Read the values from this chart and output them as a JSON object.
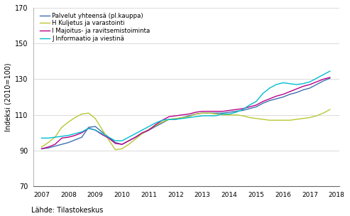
{
  "title": "",
  "ylabel": "Indeksi (2010=100)",
  "source": "Lähde: Tilastokeskus",
  "ylim": [
    70,
    170
  ],
  "yticks": [
    70,
    90,
    110,
    130,
    150,
    170
  ],
  "xlim": [
    2006.7,
    2018.1
  ],
  "legend": [
    "Palvelut yhteensä (pl.kauppa)",
    "H Kuljetus ja varastointi",
    "I Majoitus- ja ravitsemistoiminta",
    "J Informaatio ja viestinä"
  ],
  "colors": [
    "#3d6fad",
    "#b8c832",
    "#b8008a",
    "#00bcd0"
  ],
  "series": {
    "palvelut": [
      [
        2007.0,
        91.0
      ],
      [
        2007.25,
        91.5
      ],
      [
        2007.5,
        92.5
      ],
      [
        2007.75,
        93.5
      ],
      [
        2008.0,
        94.5
      ],
      [
        2008.25,
        96.0
      ],
      [
        2008.5,
        97.5
      ],
      [
        2008.75,
        103.0
      ],
      [
        2009.0,
        103.5
      ],
      [
        2009.25,
        100.5
      ],
      [
        2009.5,
        97.5
      ],
      [
        2009.75,
        94.5
      ],
      [
        2010.0,
        93.5
      ],
      [
        2010.25,
        95.5
      ],
      [
        2010.5,
        97.5
      ],
      [
        2010.75,
        99.5
      ],
      [
        2011.0,
        101.5
      ],
      [
        2011.25,
        103.5
      ],
      [
        2011.5,
        105.5
      ],
      [
        2011.75,
        107.5
      ],
      [
        2012.0,
        107.5
      ],
      [
        2012.25,
        108.5
      ],
      [
        2012.5,
        109.5
      ],
      [
        2012.75,
        110.5
      ],
      [
        2013.0,
        111.0
      ],
      [
        2013.25,
        111.0
      ],
      [
        2013.5,
        111.0
      ],
      [
        2013.75,
        111.0
      ],
      [
        2014.0,
        111.5
      ],
      [
        2014.25,
        112.0
      ],
      [
        2014.5,
        112.5
      ],
      [
        2014.75,
        113.5
      ],
      [
        2015.0,
        114.5
      ],
      [
        2015.25,
        116.5
      ],
      [
        2015.5,
        118.0
      ],
      [
        2015.75,
        119.0
      ],
      [
        2016.0,
        120.0
      ],
      [
        2016.25,
        121.5
      ],
      [
        2016.5,
        122.5
      ],
      [
        2016.75,
        124.0
      ],
      [
        2017.0,
        125.0
      ],
      [
        2017.25,
        127.0
      ],
      [
        2017.5,
        129.0
      ],
      [
        2017.75,
        130.5
      ]
    ],
    "kuljetus": [
      [
        2007.0,
        92.0
      ],
      [
        2007.25,
        94.5
      ],
      [
        2007.5,
        97.5
      ],
      [
        2007.75,
        103.0
      ],
      [
        2008.0,
        106.0
      ],
      [
        2008.25,
        108.5
      ],
      [
        2008.5,
        110.5
      ],
      [
        2008.75,
        111.0
      ],
      [
        2009.0,
        108.0
      ],
      [
        2009.25,
        102.0
      ],
      [
        2009.5,
        96.0
      ],
      [
        2009.75,
        90.5
      ],
      [
        2010.0,
        91.0
      ],
      [
        2010.25,
        93.5
      ],
      [
        2010.5,
        96.5
      ],
      [
        2010.75,
        99.5
      ],
      [
        2011.0,
        102.0
      ],
      [
        2011.25,
        104.0
      ],
      [
        2011.5,
        106.0
      ],
      [
        2011.75,
        107.5
      ],
      [
        2012.0,
        108.0
      ],
      [
        2012.25,
        108.5
      ],
      [
        2012.5,
        109.0
      ],
      [
        2012.75,
        110.5
      ],
      [
        2013.0,
        111.0
      ],
      [
        2013.25,
        111.0
      ],
      [
        2013.5,
        110.5
      ],
      [
        2013.75,
        110.0
      ],
      [
        2014.0,
        110.0
      ],
      [
        2014.25,
        110.0
      ],
      [
        2014.5,
        109.5
      ],
      [
        2014.75,
        108.5
      ],
      [
        2015.0,
        108.0
      ],
      [
        2015.25,
        107.5
      ],
      [
        2015.5,
        107.0
      ],
      [
        2015.75,
        107.0
      ],
      [
        2016.0,
        107.0
      ],
      [
        2016.25,
        107.0
      ],
      [
        2016.5,
        107.5
      ],
      [
        2016.75,
        108.0
      ],
      [
        2017.0,
        108.5
      ],
      [
        2017.25,
        109.5
      ],
      [
        2017.5,
        111.0
      ],
      [
        2017.75,
        113.0
      ]
    ],
    "majoitus": [
      [
        2007.0,
        91.0
      ],
      [
        2007.25,
        92.0
      ],
      [
        2007.5,
        93.5
      ],
      [
        2007.75,
        97.0
      ],
      [
        2008.0,
        97.5
      ],
      [
        2008.25,
        98.5
      ],
      [
        2008.5,
        100.0
      ],
      [
        2008.75,
        102.5
      ],
      [
        2009.0,
        101.5
      ],
      [
        2009.25,
        99.0
      ],
      [
        2009.5,
        97.0
      ],
      [
        2009.75,
        94.0
      ],
      [
        2010.0,
        93.5
      ],
      [
        2010.25,
        95.5
      ],
      [
        2010.5,
        97.5
      ],
      [
        2010.75,
        100.0
      ],
      [
        2011.0,
        101.5
      ],
      [
        2011.25,
        104.5
      ],
      [
        2011.5,
        107.0
      ],
      [
        2011.75,
        109.0
      ],
      [
        2012.0,
        109.5
      ],
      [
        2012.25,
        110.0
      ],
      [
        2012.5,
        110.5
      ],
      [
        2012.75,
        111.5
      ],
      [
        2013.0,
        112.0
      ],
      [
        2013.25,
        112.0
      ],
      [
        2013.5,
        112.0
      ],
      [
        2013.75,
        112.0
      ],
      [
        2014.0,
        112.5
      ],
      [
        2014.25,
        113.0
      ],
      [
        2014.5,
        113.5
      ],
      [
        2014.75,
        114.5
      ],
      [
        2015.0,
        115.5
      ],
      [
        2015.25,
        117.5
      ],
      [
        2015.5,
        119.0
      ],
      [
        2015.75,
        120.5
      ],
      [
        2016.0,
        121.5
      ],
      [
        2016.25,
        123.0
      ],
      [
        2016.5,
        124.5
      ],
      [
        2016.75,
        126.0
      ],
      [
        2017.0,
        127.0
      ],
      [
        2017.25,
        128.5
      ],
      [
        2017.5,
        130.0
      ],
      [
        2017.75,
        131.0
      ]
    ],
    "informaatio": [
      [
        2007.0,
        97.0
      ],
      [
        2007.25,
        97.0
      ],
      [
        2007.5,
        97.5
      ],
      [
        2007.75,
        98.0
      ],
      [
        2008.0,
        98.5
      ],
      [
        2008.25,
        99.5
      ],
      [
        2008.5,
        100.5
      ],
      [
        2008.75,
        102.5
      ],
      [
        2009.0,
        101.5
      ],
      [
        2009.25,
        99.5
      ],
      [
        2009.5,
        97.5
      ],
      [
        2009.75,
        95.5
      ],
      [
        2010.0,
        95.5
      ],
      [
        2010.25,
        97.5
      ],
      [
        2010.5,
        99.5
      ],
      [
        2010.75,
        101.5
      ],
      [
        2011.0,
        103.5
      ],
      [
        2011.25,
        105.5
      ],
      [
        2011.5,
        107.0
      ],
      [
        2011.75,
        107.5
      ],
      [
        2012.0,
        107.5
      ],
      [
        2012.25,
        108.0
      ],
      [
        2012.5,
        108.5
      ],
      [
        2012.75,
        109.0
      ],
      [
        2013.0,
        109.5
      ],
      [
        2013.25,
        109.5
      ],
      [
        2013.5,
        109.5
      ],
      [
        2013.75,
        110.5
      ],
      [
        2014.0,
        110.5
      ],
      [
        2014.25,
        111.5
      ],
      [
        2014.5,
        113.0
      ],
      [
        2014.75,
        115.5
      ],
      [
        2015.0,
        117.5
      ],
      [
        2015.25,
        122.0
      ],
      [
        2015.5,
        125.0
      ],
      [
        2015.75,
        127.0
      ],
      [
        2016.0,
        128.0
      ],
      [
        2016.25,
        127.5
      ],
      [
        2016.5,
        127.0
      ],
      [
        2016.75,
        127.5
      ],
      [
        2017.0,
        128.5
      ],
      [
        2017.25,
        130.5
      ],
      [
        2017.5,
        132.5
      ],
      [
        2017.75,
        134.5
      ]
    ]
  }
}
